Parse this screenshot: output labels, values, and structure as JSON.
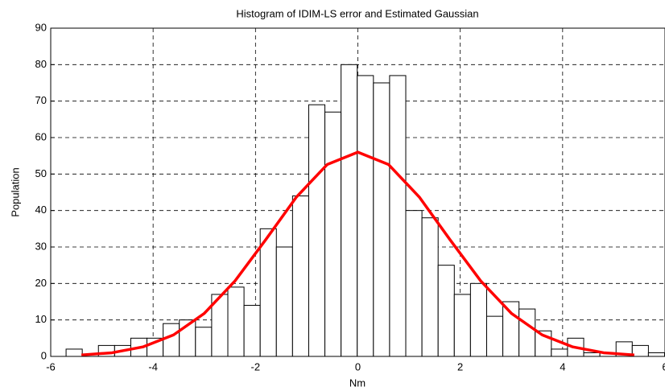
{
  "chart_data": {
    "type": "histogram",
    "title": "Histogram of IDIM-LS error and Estimated Gaussian",
    "x_label": "Nm",
    "y_label": "Population",
    "bins": [
      -5.7,
      -5.384,
      -5.068,
      -4.752,
      -4.436,
      -4.12,
      -3.804,
      -3.488,
      -3.172,
      -2.856,
      -2.54,
      -2.224,
      -1.908,
      -1.592,
      -1.276,
      -0.96,
      -0.644,
      -0.328,
      -0.012,
      0.304,
      0.62,
      0.936,
      1.252,
      1.568,
      1.884,
      2.2,
      2.516,
      2.832,
      3.148,
      3.464,
      3.78,
      4.096,
      4.412,
      4.728,
      5.044,
      5.36,
      5.676,
      5.992
    ],
    "counts": [
      2,
      0,
      3,
      3,
      5,
      5,
      9,
      10,
      8,
      17,
      19,
      14,
      35,
      30,
      44,
      69,
      67,
      80,
      77,
      75,
      77,
      40,
      38,
      25,
      17,
      20,
      11,
      15,
      13,
      7,
      2,
      5,
      1,
      1,
      4,
      3,
      1
    ],
    "color": "#ffffff",
    "curve": {
      "type": "line",
      "color": "#ff0000",
      "x": [
        -5.4,
        -4.8,
        -4.2,
        -3.6,
        -3.0,
        -2.4,
        -1.8,
        -1.2,
        -0.6,
        0,
        0.6,
        1.2,
        1.8,
        2.4,
        3.0,
        3.6,
        4.2,
        4.8,
        5.4
      ],
      "values": [
        0.4,
        1.0,
        2.6,
        5.9,
        11.8,
        20.7,
        32.0,
        43.7,
        52.6,
        56,
        52.6,
        43.7,
        32.0,
        20.7,
        11.8,
        5.9,
        2.6,
        1.0,
        0.4
      ]
    },
    "xlim": [
      -6,
      6
    ],
    "xticks": [
      -6,
      -4,
      -2,
      0,
      2,
      4,
      6
    ],
    "ylim": [
      0,
      90
    ],
    "yticks": [
      0,
      10,
      20,
      30,
      40,
      50,
      60,
      70,
      80,
      90
    ],
    "grid": true
  }
}
